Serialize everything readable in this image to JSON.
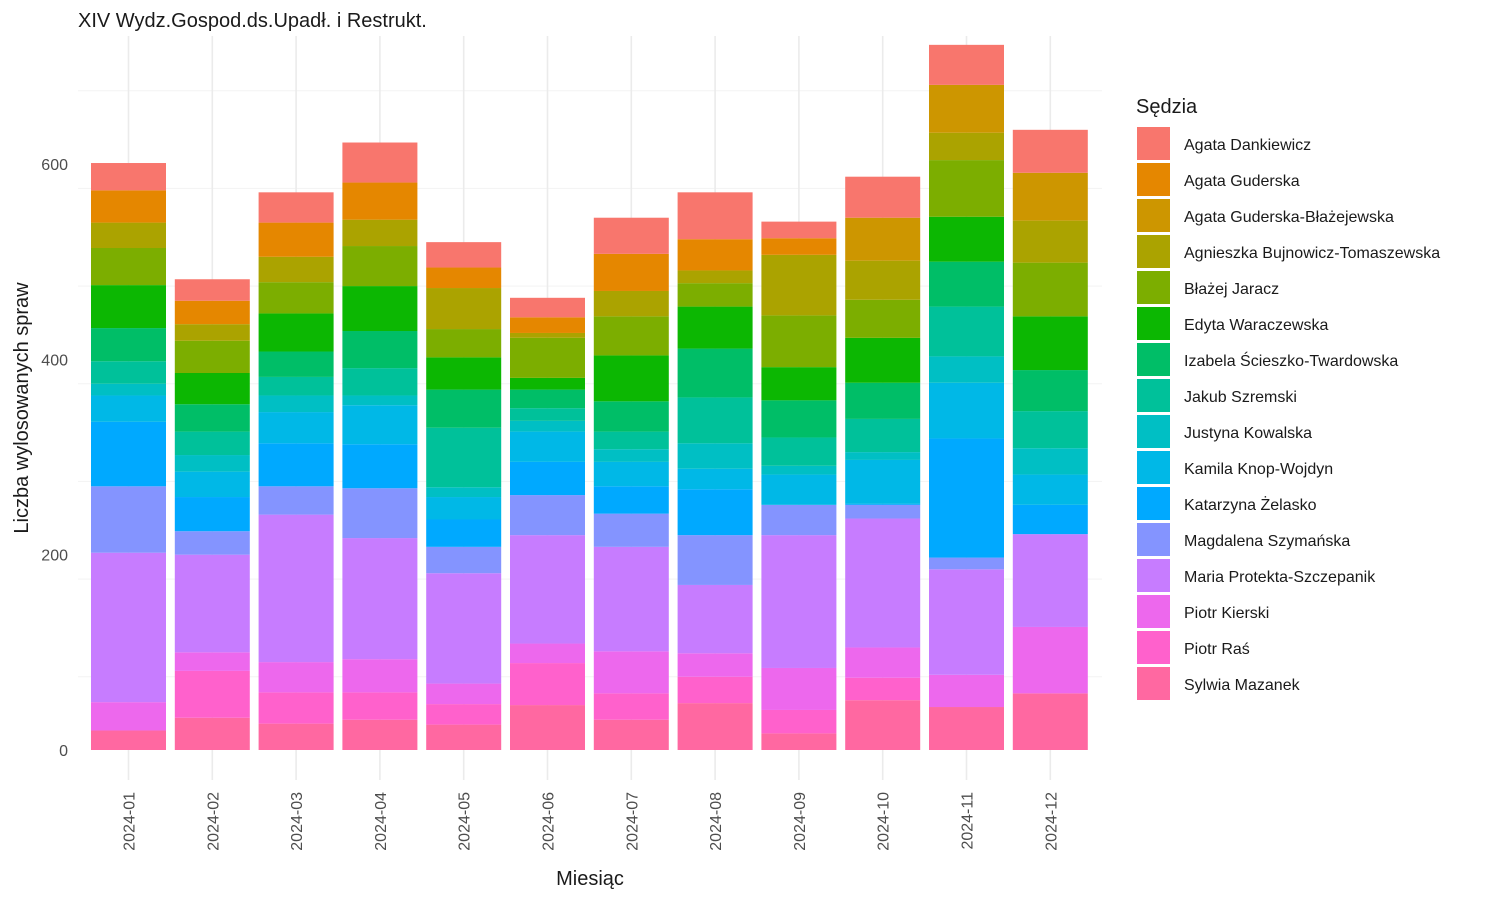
{
  "chart_data": {
    "type": "bar",
    "stacked": true,
    "title": "XIV Wydz.Gospod.ds.Upadł. i Restrukt.",
    "xlabel": "Miesiąc",
    "ylabel": "Liczba wylosowanych spraw",
    "ylim": [
      -25,
      725
    ],
    "yticks": [
      0,
      200,
      400,
      600
    ],
    "grid": true,
    "legend_title": "Sędzia",
    "legend_position": "right",
    "categories": [
      "2024-01",
      "2024-02",
      "2024-03",
      "2024-04",
      "2024-05",
      "2024-06",
      "2024-07",
      "2024-08",
      "2024-09",
      "2024-10",
      "2024-11",
      "2024-12"
    ],
    "series": [
      {
        "name": "Agata Dankiewicz",
        "color": "#F8766D",
        "values": [
          28,
          22,
          31,
          41,
          26,
          20,
          37,
          48,
          17,
          42,
          41,
          44
        ]
      },
      {
        "name": "Agata Guderska",
        "color": "#E58700",
        "values": [
          33,
          24,
          35,
          38,
          21,
          16,
          38,
          32,
          17,
          0,
          0,
          0
        ]
      },
      {
        "name": "Agata Guderska-Błażejewska",
        "color": "#CD9600",
        "values": [
          0,
          0,
          0,
          0,
          0,
          0,
          0,
          0,
          0,
          44,
          49,
          49
        ]
      },
      {
        "name": "Agnieszka Bujnowicz-Tomaszewska",
        "color": "#ABA300",
        "values": [
          26,
          17,
          26,
          27,
          42,
          5,
          26,
          13,
          62,
          40,
          28,
          43
        ]
      },
      {
        "name": "Błażej Jaracz",
        "color": "#7CAE00",
        "values": [
          38,
          33,
          32,
          41,
          29,
          41,
          40,
          24,
          53,
          39,
          58,
          55
        ]
      },
      {
        "name": "Edyta Waraczewska",
        "color": "#0CB702",
        "values": [
          44,
          32,
          39,
          46,
          33,
          12,
          47,
          43,
          34,
          46,
          46,
          55
        ]
      },
      {
        "name": "Izabela Ścieszko-Twardowska",
        "color": "#00BE67",
        "values": [
          34,
          28,
          26,
          38,
          39,
          19,
          31,
          50,
          38,
          37,
          46,
          42
        ]
      },
      {
        "name": "Jakub Szremski",
        "color": "#00C19A",
        "values": [
          23,
          24,
          19,
          28,
          61,
          13,
          18,
          47,
          29,
          34,
          51,
          38
        ]
      },
      {
        "name": "Justyna Kowalska",
        "color": "#00BFC4",
        "values": [
          12,
          17,
          17,
          10,
          10,
          11,
          13,
          26,
          9,
          8,
          27,
          27
        ]
      },
      {
        "name": "Kamila Knop-Wojdyn",
        "color": "#00B8E7",
        "values": [
          27,
          26,
          32,
          40,
          23,
          31,
          25,
          21,
          31,
          45,
          57,
          31
        ]
      },
      {
        "name": "Katarzyna Żelasko",
        "color": "#00A9FF",
        "values": [
          66,
          35,
          44,
          45,
          28,
          34,
          28,
          47,
          0,
          1,
          122,
          30
        ]
      },
      {
        "name": "Magdalena Szymańska",
        "color": "#8494FF",
        "values": [
          68,
          24,
          29,
          51,
          27,
          41,
          34,
          51,
          31,
          14,
          12,
          0
        ]
      },
      {
        "name": "Maria Protekta-Szczepanik",
        "color": "#C77CFF",
        "values": [
          153,
          100,
          151,
          124,
          113,
          111,
          107,
          70,
          136,
          132,
          108,
          95
        ]
      },
      {
        "name": "Piotr Kierski",
        "color": "#ED68ED",
        "values": [
          29,
          19,
          31,
          34,
          21,
          20,
          43,
          24,
          43,
          31,
          33,
          68
        ]
      },
      {
        "name": "Piotr Raś",
        "color": "#FF61CC",
        "values": [
          0,
          48,
          32,
          28,
          21,
          43,
          27,
          27,
          24,
          23,
          0,
          0
        ]
      },
      {
        "name": "Sylwia Mazanek",
        "color": "#FF68A1",
        "values": [
          20,
          33,
          27,
          31,
          26,
          46,
          31,
          48,
          17,
          51,
          44,
          58
        ]
      }
    ]
  }
}
